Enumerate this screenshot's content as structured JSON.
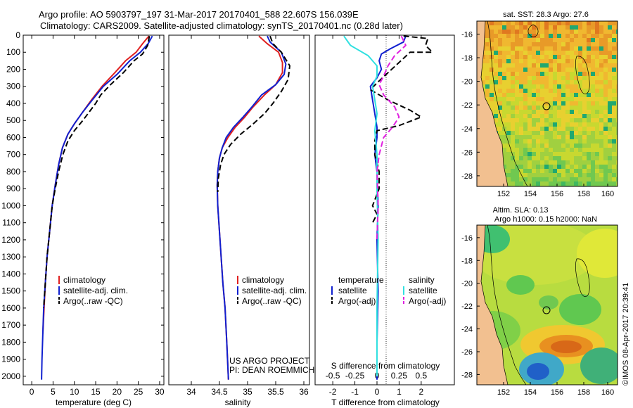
{
  "header": {
    "line1": "Argo profile: AO 5903797_197 31-Mar-2017 20170401_588 22.607S 156.039E",
    "line2": "Climatology: CARS2009. Satellite-adjusted climatology: synTS_20170401.nc (0.28d later)"
  },
  "colors": {
    "climatology": "#e02020",
    "satellite": "#1020d0",
    "argo": "#000000",
    "sat_salinity": "#30e0e0",
    "argo_salinity": "#e020e0",
    "land": "#f2c090"
  },
  "chart_data": [
    {
      "type": "line",
      "name": "temperature",
      "xlabel": "temperature (deg C)",
      "xlim": [
        -2,
        31
      ],
      "xticks": [
        0,
        5,
        10,
        15,
        20,
        25,
        30
      ],
      "ylim": [
        2050,
        0
      ],
      "yticks": [
        0,
        100,
        200,
        300,
        400,
        500,
        600,
        700,
        800,
        900,
        1000,
        1100,
        1200,
        1300,
        1400,
        1500,
        1600,
        1700,
        1800,
        1900,
        2000
      ],
      "legend": [
        "climatology",
        "satellite-adj. clim.",
        "Argo(..raw -QC)"
      ],
      "series": [
        {
          "name": "climatology",
          "color": "#e02020",
          "style": "solid",
          "points": [
            [
              27.5,
              5
            ],
            [
              26,
              50
            ],
            [
              24.5,
              100
            ],
            [
              22,
              150
            ],
            [
              19.5,
              220
            ],
            [
              16.5,
              300
            ],
            [
              14,
              380
            ],
            [
              12,
              450
            ],
            [
              10,
              520
            ],
            [
              8.5,
              580
            ],
            [
              7.2,
              660
            ],
            [
              6.3,
              760
            ],
            [
              5.5,
              880
            ],
            [
              4.8,
              1000
            ],
            [
              4.2,
              1150
            ],
            [
              3.6,
              1300
            ],
            [
              3.2,
              1450
            ],
            [
              2.9,
              1600
            ],
            [
              2.6,
              1750
            ]
          ]
        },
        {
          "name": "satellite-adj. clim.",
          "color": "#1020d0",
          "style": "solid",
          "points": [
            [
              28.3,
              5
            ],
            [
              27.3,
              50
            ],
            [
              25.5,
              100
            ],
            [
              23,
              150
            ],
            [
              20,
              230
            ],
            [
              16.8,
              300
            ],
            [
              14.2,
              380
            ],
            [
              12,
              450
            ],
            [
              10,
              520
            ],
            [
              8.5,
              580
            ],
            [
              7.2,
              660
            ],
            [
              6.3,
              760
            ],
            [
              5.5,
              880
            ],
            [
              4.8,
              1000
            ],
            [
              4.2,
              1150
            ],
            [
              3.6,
              1300
            ],
            [
              3.2,
              1450
            ],
            [
              2.8,
              1600
            ],
            [
              2.6,
              1750
            ],
            [
              2.4,
              1900
            ],
            [
              2.3,
              2020
            ]
          ]
        },
        {
          "name": "Argo(..raw -QC)",
          "color": "#000000",
          "style": "dashed",
          "points": [
            [
              27.6,
              5
            ],
            [
              27.2,
              60
            ],
            [
              26,
              110
            ],
            [
              24,
              150
            ],
            [
              21.5,
              220
            ],
            [
              18.5,
              290
            ],
            [
              16.2,
              350
            ],
            [
              15,
              400
            ],
            [
              13.5,
              450
            ],
            [
              12,
              500
            ],
            [
              10,
              560
            ],
            [
              8.5,
              620
            ],
            [
              7.3,
              700
            ],
            [
              6.3,
              800
            ],
            [
              5.5,
              900
            ],
            [
              4.8,
              1000
            ],
            [
              4.2,
              1150
            ],
            [
              3.6,
              1300
            ],
            [
              3.2,
              1450
            ],
            [
              2.8,
              1600
            ]
          ]
        }
      ]
    },
    {
      "type": "line",
      "name": "salinity",
      "xlabel": "salinity",
      "xlim": [
        33.6,
        36.1
      ],
      "xticks": [
        34,
        34.5,
        35,
        35.5,
        36
      ],
      "ylim": [
        2050,
        0
      ],
      "legend": [
        "climatology",
        "satellite-adj. clim.",
        "Argo(..raw -QC)"
      ],
      "annotation": [
        "US ARGO PROJECT",
        "PI: DEAN ROEMMICH"
      ],
      "series": [
        {
          "name": "climatology",
          "color": "#e02020",
          "style": "solid",
          "points": [
            [
              35.2,
              5
            ],
            [
              35.35,
              50
            ],
            [
              35.55,
              100
            ],
            [
              35.62,
              160
            ],
            [
              35.62,
              220
            ],
            [
              35.5,
              290
            ],
            [
              35.3,
              350
            ],
            [
              35.1,
              420
            ],
            [
              34.95,
              480
            ],
            [
              34.78,
              540
            ],
            [
              34.65,
              600
            ],
            [
              34.55,
              660
            ],
            [
              34.5,
              720
            ],
            [
              34.47,
              800
            ],
            [
              34.46,
              880
            ],
            [
              34.47,
              1000
            ],
            [
              34.5,
              1150
            ],
            [
              34.53,
              1300
            ],
            [
              34.56,
              1450
            ],
            [
              34.6,
              1600
            ],
            [
              34.63,
              1800
            ],
            [
              34.66,
              2020
            ]
          ]
        },
        {
          "name": "satellite-adj. clim.",
          "color": "#1020d0",
          "style": "solid",
          "points": [
            [
              35.35,
              5
            ],
            [
              35.4,
              40
            ],
            [
              35.6,
              100
            ],
            [
              35.68,
              170
            ],
            [
              35.65,
              230
            ],
            [
              35.5,
              290
            ],
            [
              35.25,
              350
            ],
            [
              35.08,
              420
            ],
            [
              34.92,
              480
            ],
            [
              34.75,
              540
            ],
            [
              34.62,
              600
            ],
            [
              34.55,
              660
            ],
            [
              34.5,
              720
            ],
            [
              34.47,
              800
            ],
            [
              34.46,
              880
            ],
            [
              34.47,
              1000
            ],
            [
              34.5,
              1150
            ],
            [
              34.53,
              1300
            ],
            [
              34.56,
              1450
            ],
            [
              34.6,
              1600
            ],
            [
              34.63,
              1800
            ],
            [
              34.66,
              2020
            ]
          ]
        },
        {
          "name": "Argo(..raw -QC)",
          "color": "#000000",
          "style": "dashed",
          "points": [
            [
              35.4,
              5
            ],
            [
              35.45,
              50
            ],
            [
              35.6,
              100
            ],
            [
              35.75,
              180
            ],
            [
              35.72,
              260
            ],
            [
              35.6,
              330
            ],
            [
              35.45,
              400
            ],
            [
              35.3,
              460
            ],
            [
              35.1,
              520
            ],
            [
              34.88,
              580
            ],
            [
              34.7,
              640
            ],
            [
              34.58,
              700
            ],
            [
              34.52,
              760
            ],
            [
              34.48,
              840
            ],
            [
              34.47,
              920
            ]
          ]
        }
      ]
    },
    {
      "type": "line",
      "name": "difference",
      "xlabel": "T difference from climatology",
      "xlabel2": "S difference from climatology",
      "xlim": [
        -2.8,
        3.5
      ],
      "xticks": [
        -2,
        -1,
        0,
        1,
        2
      ],
      "xticks_top_labels": [
        "-0.5",
        "-0.25",
        "0",
        "0.25",
        "0.5"
      ],
      "ylim": [
        2050,
        0
      ],
      "legend": [
        "temperature",
        "satellite",
        "Argo(-adj)",
        "salinity",
        "satellite",
        "Argo(-adj)"
      ],
      "series": [
        {
          "name": "T satellite",
          "color": "#1020d0",
          "style": "solid",
          "points": [
            [
              1.3,
              5
            ],
            [
              1.2,
              40
            ],
            [
              0.6,
              80
            ],
            [
              0.2,
              110
            ],
            [
              0.1,
              150
            ],
            [
              0.2,
              200
            ],
            [
              0,
              250
            ],
            [
              -0.3,
              300
            ],
            [
              -0.2,
              380
            ],
            [
              -0.1,
              460
            ],
            [
              0,
              540
            ],
            [
              0,
              600
            ],
            [
              -0.1,
              700
            ],
            [
              0,
              800
            ],
            [
              0.05,
              1000
            ],
            [
              0,
              1200
            ],
            [
              0.05,
              1500
            ],
            [
              0,
              1800
            ],
            [
              0,
              2020
            ]
          ]
        },
        {
          "name": "T Argo(-adj)",
          "color": "#000000",
          "style": "dashed",
          "points": [
            [
              1.2,
              5
            ],
            [
              2.3,
              20
            ],
            [
              2.2,
              60
            ],
            [
              2.5,
              100
            ],
            [
              1.5,
              100
            ],
            [
              1,
              160
            ],
            [
              0.5,
              220
            ],
            [
              0,
              280
            ],
            [
              -0.3,
              320
            ],
            [
              0.5,
              380
            ],
            [
              1.5,
              440
            ],
            [
              2,
              480
            ],
            [
              1,
              530
            ],
            [
              0,
              560
            ],
            [
              -0.1,
              620
            ],
            [
              -0.1,
              700
            ],
            [
              0.1,
              800
            ],
            [
              0.1,
              900
            ],
            [
              -0.2,
              1000
            ],
            [
              0,
              1050
            ],
            [
              -0.2,
              1100
            ]
          ]
        },
        {
          "name": "S satellite",
          "color": "#30e0e0",
          "style": "solid",
          "points": [
            [
              -1.5,
              5
            ],
            [
              -1.2,
              60
            ],
            [
              -0.4,
              120
            ],
            [
              0,
              180
            ],
            [
              0,
              240
            ],
            [
              -0.2,
              300
            ],
            [
              -0.1,
              380
            ],
            [
              0,
              460
            ],
            [
              -0.1,
              560
            ],
            [
              0,
              700
            ],
            [
              0,
              900
            ],
            [
              0.05,
              1200
            ],
            [
              0,
              1600
            ],
            [
              0,
              2000
            ]
          ]
        },
        {
          "name": "S Argo(-adj)",
          "color": "#e020e0",
          "style": "dashed",
          "points": [
            [
              1.1,
              5
            ],
            [
              1.3,
              60
            ],
            [
              0.8,
              120
            ],
            [
              0.5,
              180
            ],
            [
              0.3,
              240
            ],
            [
              0.1,
              290
            ],
            [
              0.3,
              350
            ],
            [
              0.8,
              420
            ],
            [
              1,
              480
            ],
            [
              0.7,
              540
            ],
            [
              0.3,
              600
            ],
            [
              0.1,
              700
            ],
            [
              0,
              800
            ],
            [
              0.05,
              1000
            ],
            [
              0,
              1200
            ]
          ]
        }
      ]
    }
  ],
  "maps": [
    {
      "title": "sat. SST: 28.3 Argo: 27.6",
      "lat_ticks": [
        "-16",
        "-18",
        "-20",
        "-22",
        "-24",
        "-26",
        "-28"
      ],
      "lon_ticks": [
        "152",
        "154",
        "156",
        "158",
        "160"
      ]
    },
    {
      "title1": "Altim. SLA: 0.13",
      "title2": "Argo h1000: 0.15 h2000: NaN",
      "lat_ticks": [
        "-16",
        "-18",
        "-20",
        "-22",
        "-24",
        "-26",
        "-28"
      ],
      "lon_ticks": [
        "152",
        "154",
        "156",
        "158",
        "160"
      ]
    }
  ],
  "footer": {
    "stamp": "©IMOS 08-Apr-2017 20:39:41"
  }
}
